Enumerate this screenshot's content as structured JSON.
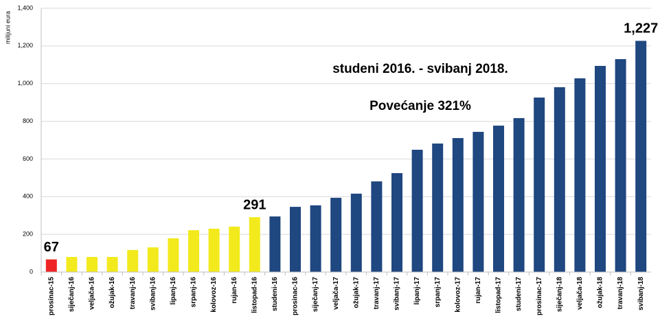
{
  "chart_data": {
    "type": "bar",
    "y_label": "milijuni eura",
    "annotations": [
      "studeni 2016. - svibanj 2018.",
      "Povećanje 321%"
    ],
    "categories": [
      "prosinac-15",
      "siječanj-16",
      "veljača-16",
      "ožujak-16",
      "travanj-16",
      "svibanj-16",
      "lipanj-16",
      "srpanj-16",
      "kolovoz-16",
      "rujan-16",
      "listopad-16",
      "studeni-16",
      "prosinac-16",
      "siječanj-17",
      "veljača-17",
      "ožujak-17",
      "travanj-17",
      "svibanj-17",
      "lipanj-17",
      "srpanj-17",
      "kolovoz-17",
      "rujan-17",
      "listopad-17",
      "studeni-17",
      "prosinac-17",
      "siječanj-18",
      "veljača-18",
      "ožujak-18",
      "travanj-18",
      "svibanj-18"
    ],
    "values": [
      67,
      80,
      80,
      80,
      117,
      131,
      179,
      222,
      230,
      241,
      291,
      295,
      346,
      354,
      394,
      416,
      481,
      525,
      649,
      682,
      711,
      744,
      777,
      817,
      926,
      981,
      1028,
      1094,
      1130,
      1227
    ],
    "value_labels": [
      "67",
      null,
      null,
      null,
      null,
      null,
      null,
      null,
      null,
      null,
      "291",
      null,
      null,
      null,
      null,
      null,
      null,
      null,
      null,
      null,
      null,
      null,
      null,
      null,
      null,
      null,
      null,
      null,
      null,
      "1,227"
    ],
    "colors": [
      "#ee2524",
      "#f2ea1d",
      "#f2ea1d",
      "#f2ea1d",
      "#f2ea1d",
      "#f2ea1d",
      "#f2ea1d",
      "#f2ea1d",
      "#f2ea1d",
      "#f2ea1d",
      "#f2ea1d",
      "#1f4780",
      "#1f4780",
      "#1f4780",
      "#1f4780",
      "#1f4780",
      "#1f4780",
      "#1f4780",
      "#1f4780",
      "#1f4780",
      "#1f4780",
      "#1f4780",
      "#1f4780",
      "#1f4780",
      "#1f4780",
      "#1f4780",
      "#1f4780",
      "#1f4780",
      "#1f4780",
      "#1f4780"
    ],
    "ylim": [
      0,
      1400
    ],
    "yticks": [
      0,
      200,
      400,
      600,
      800,
      {
        "value": 1000,
        "label": "1,000"
      },
      {
        "value": 1200,
        "label": "1,200"
      },
      {
        "value": 1400,
        "label": "1,400"
      }
    ],
    "grid": true
  }
}
